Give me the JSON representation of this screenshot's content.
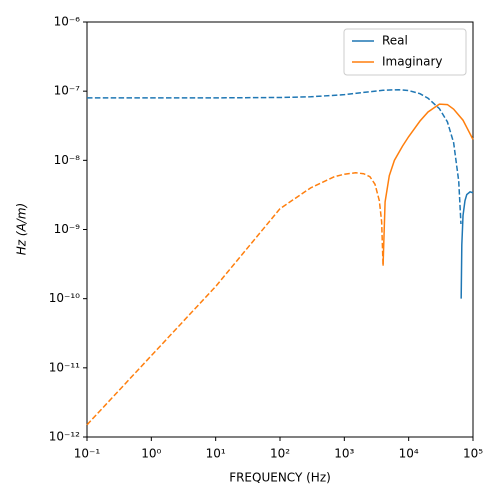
{
  "chart_data": {
    "type": "line",
    "log_x": true,
    "log_y": true,
    "legend": "upper right",
    "xlabel": "FREQUENCY (Hz)",
    "ylabel": "Hz (A/m)",
    "xlim": [
      0.1,
      100000
    ],
    "ylim": [
      1e-12,
      1e-06
    ],
    "xticks": [
      {
        "value": 0.1,
        "label": "10⁻¹"
      },
      {
        "value": 1,
        "label": "10⁰"
      },
      {
        "value": 10,
        "label": "10¹"
      },
      {
        "value": 100,
        "label": "10²"
      },
      {
        "value": 1000,
        "label": "10³"
      },
      {
        "value": 10000,
        "label": "10⁴"
      },
      {
        "value": 100000,
        "label": "10⁵"
      }
    ],
    "yticks": [
      {
        "value": 1e-12,
        "label": "10⁻¹²"
      },
      {
        "value": 1e-11,
        "label": "10⁻¹¹"
      },
      {
        "value": 1e-10,
        "label": "10⁻¹⁰"
      },
      {
        "value": 1e-09,
        "label": "10⁻⁹"
      },
      {
        "value": 1e-08,
        "label": "10⁻⁸"
      },
      {
        "value": 1e-07,
        "label": "10⁻⁷"
      },
      {
        "value": 1e-06,
        "label": "10⁻⁶"
      }
    ],
    "series": [
      {
        "name": "Real",
        "color": "#1f77b4",
        "segments": [
          {
            "linestyle": "dashed",
            "x": [
              0.1,
              1,
              10,
              100,
              300,
              1000,
              2000,
              4000,
              7000,
              10000,
              15000,
              20000,
              30000,
              40000,
              50000,
              60000,
              65000
            ],
            "values": [
              8e-08,
              8e-08,
              8e-08,
              8.1e-08,
              8.3e-08,
              8.9e-08,
              9.6e-08,
              1.03e-07,
              1.05e-07,
              1.02e-07,
              9.2e-08,
              7.9e-08,
              5.6e-08,
              3.6e-08,
              1.8e-08,
              5e-09,
              1.2e-09
            ]
          },
          {
            "linestyle": "solid",
            "x": [
              65500,
              67000,
              70000,
              75000,
              80000,
              90000,
              100000
            ],
            "values": [
              1e-10,
              6e-10,
              1.6e-09,
              2.6e-09,
              3.2e-09,
              3.5e-09,
              3.4e-09
            ]
          }
        ]
      },
      {
        "name": "Imaginary",
        "color": "#ff7f0e",
        "segments": [
          {
            "linestyle": "dashed",
            "x": [
              0.1,
              1,
              10,
              100,
              300,
              700,
              1000,
              1500,
              2000,
              2500,
              3000,
              3500,
              3800,
              4000
            ],
            "values": [
              1.5e-12,
              1.5e-11,
              1.5e-10,
              2e-09,
              4e-09,
              5.8e-09,
              6.3e-09,
              6.6e-09,
              6.4e-09,
              5.8e-09,
              4.5e-09,
              2.6e-09,
              1.3e-09,
              3e-10
            ]
          },
          {
            "linestyle": "solid",
            "x": [
              4000,
              4300,
              5000,
              6000,
              8000,
              10000,
              15000,
              20000,
              30000,
              40000,
              50000,
              70000,
              100000
            ],
            "values": [
              3e-10,
              2.5e-09,
              6e-09,
              1e-08,
              1.6e-08,
              2.2e-08,
              3.7e-08,
              5e-08,
              6.5e-08,
              6.4e-08,
              5.5e-08,
              3.8e-08,
              2e-08
            ]
          }
        ]
      }
    ]
  }
}
